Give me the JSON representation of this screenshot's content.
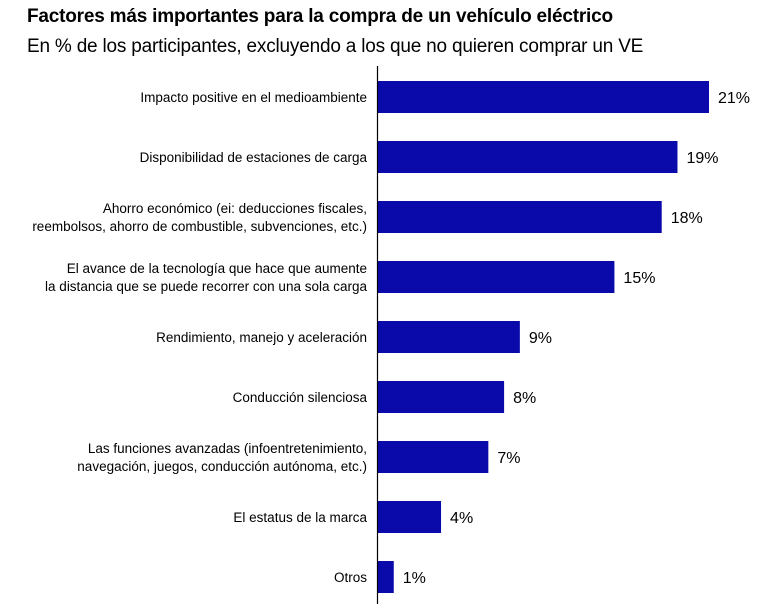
{
  "chart_data": {
    "type": "bar",
    "orientation": "horizontal",
    "title": "Factores más importantes para la compra de un vehículo eléctrico",
    "subtitle": "En % de los participantes, excluyendo a los que no quieren comprar un VE",
    "xlabel": "",
    "ylabel": "",
    "unit": "%",
    "grid": false,
    "legend": "none",
    "bar_color": "#0A0AAA",
    "xlim": [
      0,
      21
    ],
    "categories": [
      [
        "Impacto positive en el medioambiente"
      ],
      [
        "Disponibilidad de estaciones de carga"
      ],
      [
        "Ahorro económico (ei: deducciones fiscales,",
        "reembolsos, ahorro de combustible, subvenciones, etc.)"
      ],
      [
        "El avance de la tecnología que hace que aumente",
        "la distancia que se puede recorrer con una sola carga"
      ],
      [
        "Rendimiento, manejo y aceleración"
      ],
      [
        "Conducción silenciosa"
      ],
      [
        "Las funciones avanzadas (infoentretenimiento,",
        "navegación, juegos, conducción autónoma, etc.)"
      ],
      [
        "El estatus de la marca"
      ],
      [
        "Otros"
      ]
    ],
    "values": [
      21,
      19,
      18,
      15,
      9,
      8,
      7,
      4,
      1
    ],
    "value_labels": [
      "21%",
      "19%",
      "18%",
      "15%",
      "9%",
      "8%",
      "7%",
      "4%",
      "1%"
    ]
  }
}
